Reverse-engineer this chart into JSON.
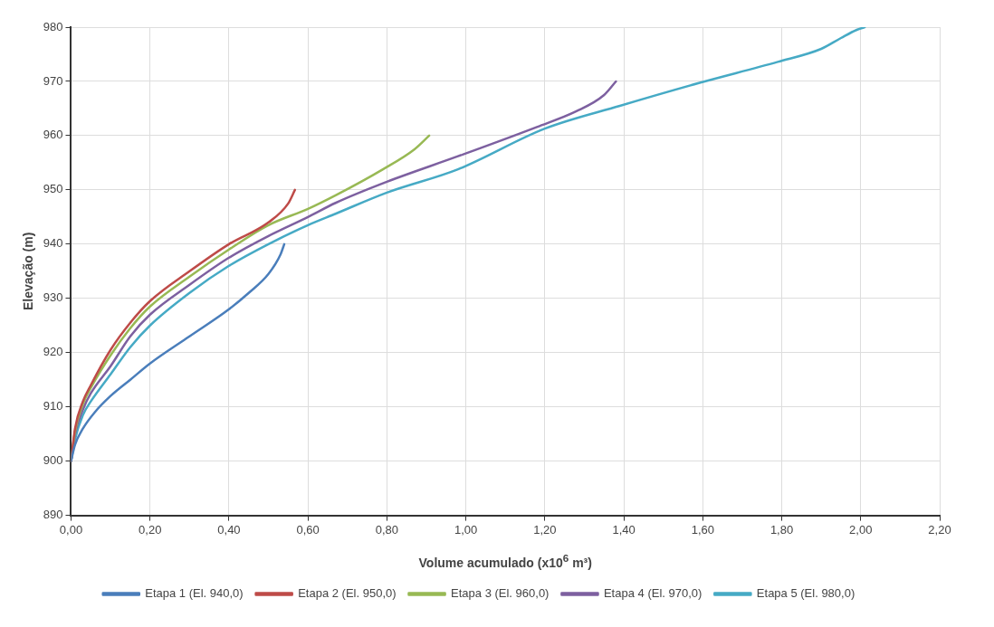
{
  "chart_data": {
    "type": "line",
    "xlabel": "Volume acumulado (x10$^{6}$ m³)",
    "ylabel": "Elevação (m)",
    "xlim": [
      0,
      2.2
    ],
    "xticks": [
      {
        "value": 0,
        "label": "0,00"
      },
      {
        "value": 0.2,
        "label": "0,20"
      },
      {
        "value": 0.4,
        "label": "0,40"
      },
      {
        "value": 0.6,
        "label": "0,60"
      },
      {
        "value": 0.8,
        "label": "0,80"
      },
      {
        "value": 1.0,
        "label": "1,00"
      },
      {
        "value": 1.2,
        "label": "1,20"
      },
      {
        "value": 1.4,
        "label": "1,40"
      },
      {
        "value": 1.6,
        "label": "1,60"
      },
      {
        "value": 1.8,
        "label": "1,80"
      },
      {
        "value": 2.0,
        "label": "2,00"
      },
      {
        "value": 2.2,
        "label": "2,20"
      }
    ],
    "ylim": [
      890,
      980
    ],
    "yticks": [
      890,
      900,
      910,
      920,
      930,
      940,
      950,
      960,
      970,
      980
    ],
    "grid": true,
    "legend": "bottom",
    "marker": "none",
    "line_style": "solid",
    "series": [
      {
        "name": "Etapa 1 (El. 940,0)",
        "color": "#4a7ebb",
        "x": [
          0,
          0.01,
          0.03,
          0.06,
          0.1,
          0.15,
          0.2,
          0.3,
          0.4,
          0.45,
          0.5,
          0.53,
          0.54
        ],
        "values": [
          900,
          903,
          906,
          909,
          912,
          915,
          918,
          923,
          928,
          931,
          934.5,
          938,
          940
        ]
      },
      {
        "name": "Etapa 2 (El. 950,0)",
        "color": "#be4b48",
        "x": [
          0,
          0.01,
          0.03,
          0.05,
          0.1,
          0.15,
          0.2,
          0.3,
          0.4,
          0.5,
          0.55,
          0.567
        ],
        "values": [
          900,
          906,
          911,
          914,
          920.5,
          925.5,
          929.5,
          935,
          940,
          944,
          947.5,
          950
        ]
      },
      {
        "name": "Etapa 3 (El. 960,0)",
        "color": "#98b954",
        "x": [
          0,
          0.01,
          0.03,
          0.05,
          0.1,
          0.15,
          0.2,
          0.3,
          0.4,
          0.5,
          0.6,
          0.67,
          0.79,
          0.87,
          0.907
        ],
        "values": [
          900,
          905.5,
          910.5,
          913.5,
          919.5,
          924.5,
          928.5,
          934,
          939,
          943.5,
          946.5,
          949,
          953.8,
          957.5,
          960
        ]
      },
      {
        "name": "Etapa 4 (El. 970,0)",
        "color": "#7d60a0",
        "x": [
          0,
          0.01,
          0.03,
          0.05,
          0.1,
          0.15,
          0.2,
          0.3,
          0.4,
          0.5,
          0.6,
          0.67,
          0.8,
          0.98,
          1.18,
          1.28,
          1.35,
          1.38
        ],
        "values": [
          900,
          905,
          909.5,
          912.5,
          917.5,
          923,
          927,
          932.5,
          937.5,
          941.5,
          945,
          947.6,
          951.5,
          956.2,
          961.6,
          964.5,
          967.5,
          970
        ]
      },
      {
        "name": "Etapa 5 (El. 980,0)",
        "color": "#46aac5",
        "x": [
          0,
          0.01,
          0.03,
          0.05,
          0.1,
          0.15,
          0.2,
          0.3,
          0.4,
          0.5,
          0.6,
          0.67,
          0.8,
          0.98,
          1.2,
          1.39,
          1.59,
          1.79,
          1.9,
          1.95,
          1.99,
          2.01
        ],
        "values": [
          900,
          904,
          908.5,
          911,
          916,
          921,
          925,
          931,
          936,
          940,
          943.5,
          945.6,
          949.5,
          953.8,
          961.3,
          965.5,
          969.7,
          973.6,
          976,
          978,
          979.5,
          980
        ]
      }
    ]
  }
}
